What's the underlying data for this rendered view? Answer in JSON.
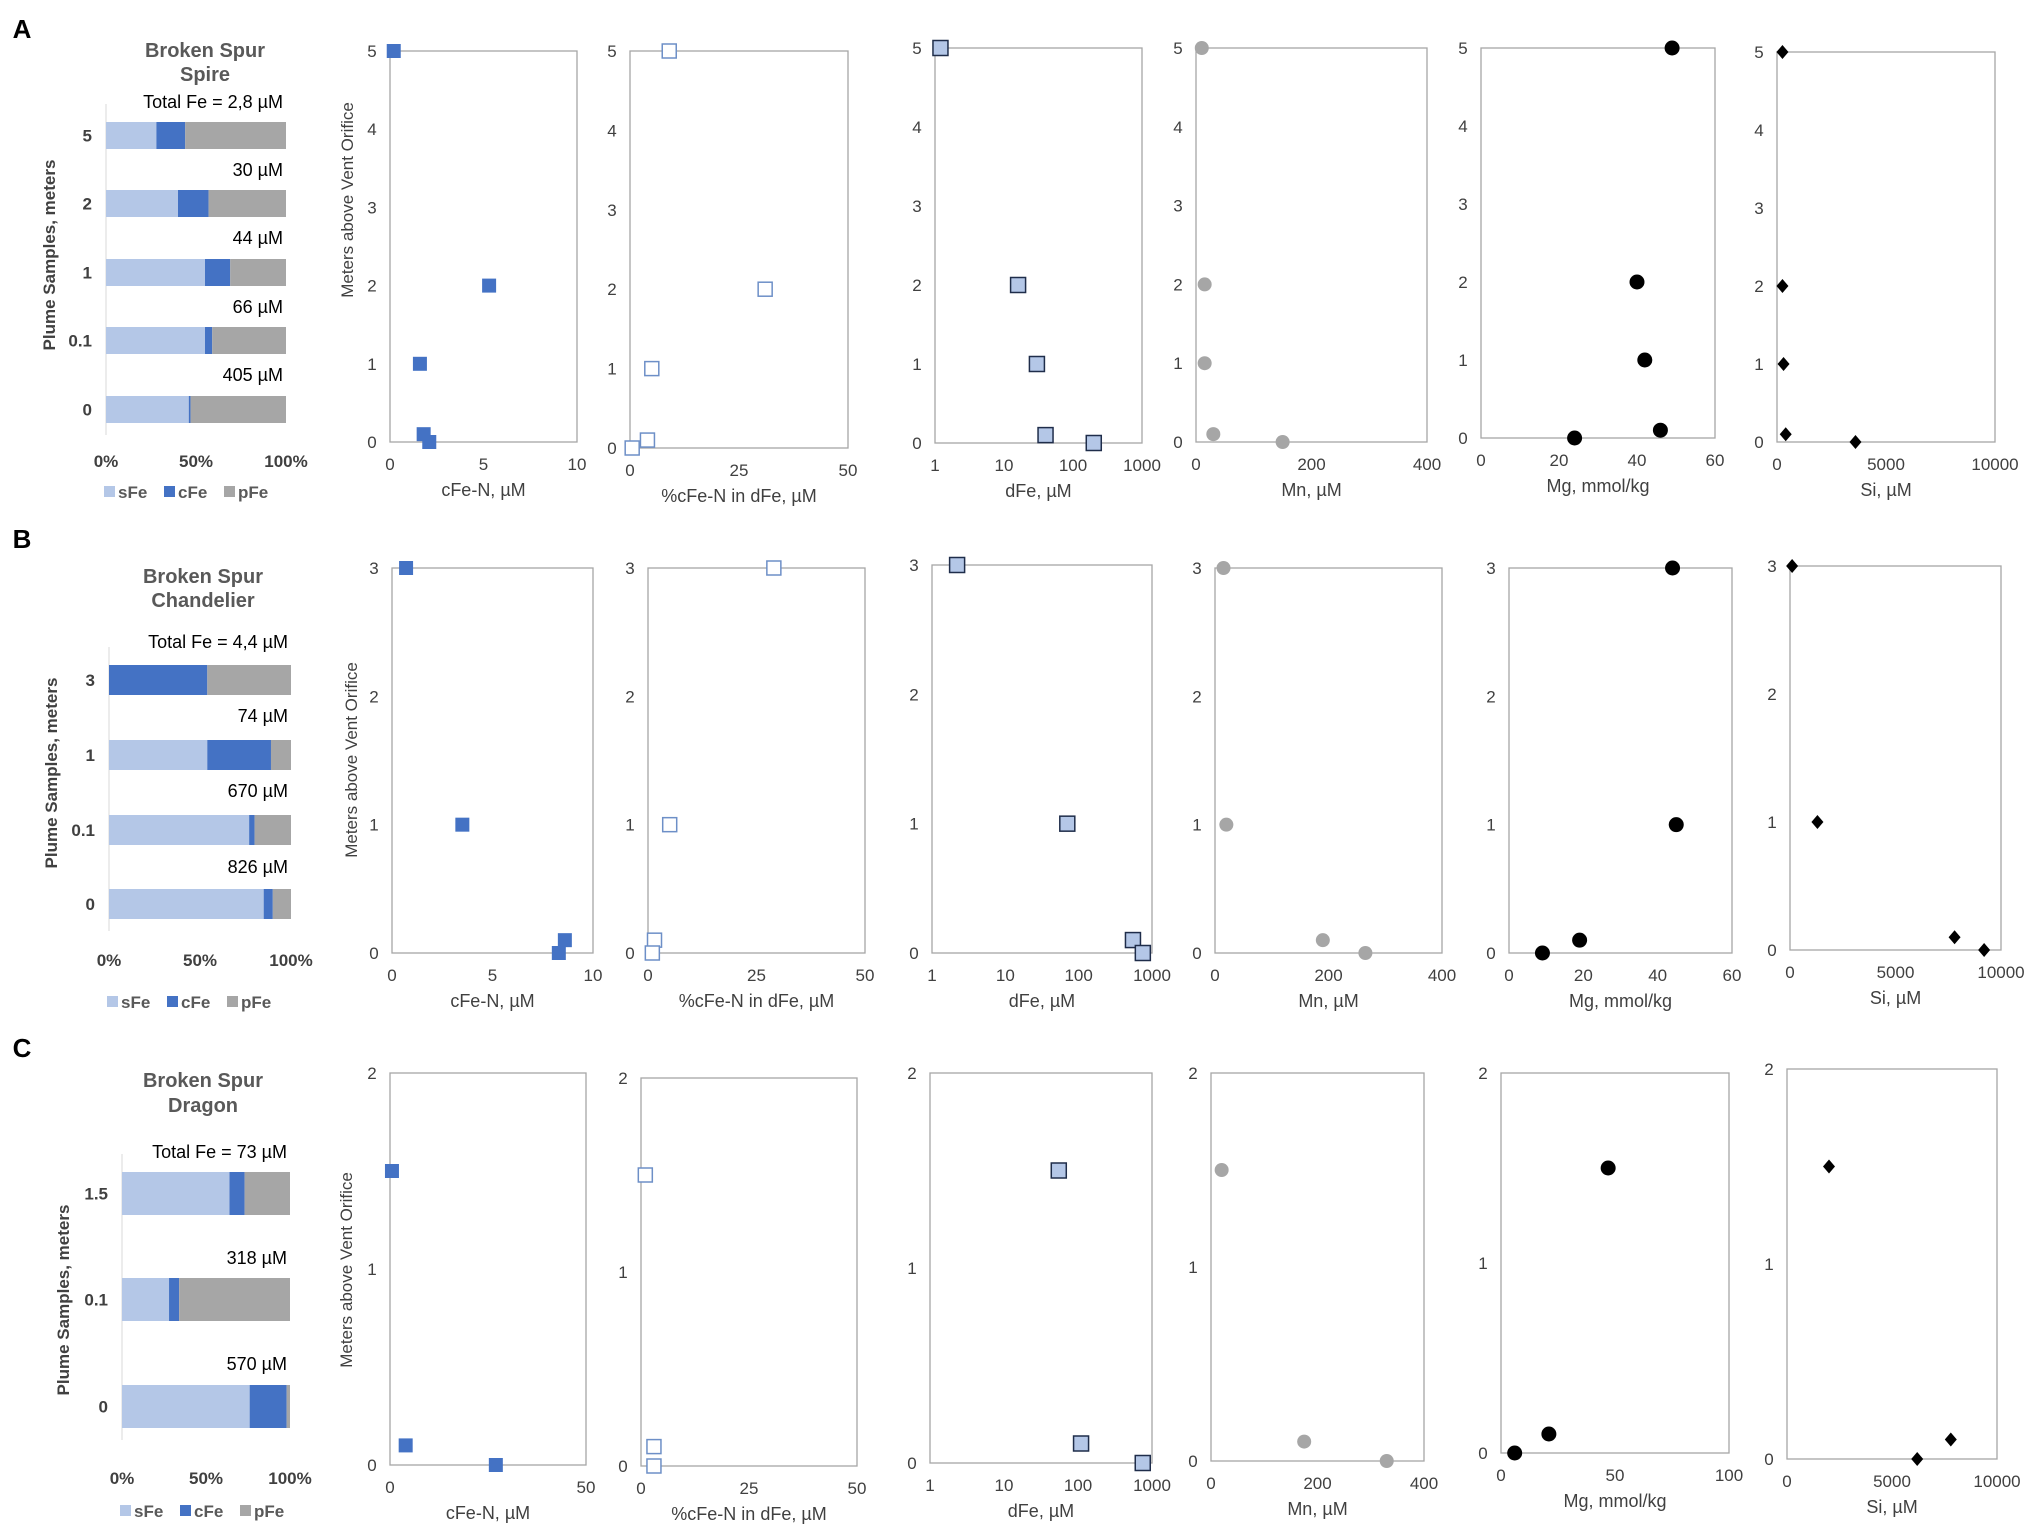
{
  "colors": {
    "sFe": "#b4c7e7",
    "cFe": "#4472c4",
    "pFe": "#a6a6a6",
    "mn": "#a6a6a6",
    "black": "#000000",
    "frame": "#a6a6a6"
  },
  "shared": {
    "legend": [
      "sFe",
      "cFe",
      "pFe"
    ],
    "bar_ylabel": "Plume Samples, meters",
    "bar_xticks": [
      "0%",
      "50%",
      "100%"
    ],
    "scatter_ylabel": "Meters above Vent Orifice"
  },
  "chart_data": [
    {
      "type": "bar",
      "stacked": true,
      "orientation": "horizontal",
      "panel": "A",
      "title": "Broken Spur\nSpire",
      "categories": [
        "5",
        "2",
        "1",
        "0.1",
        "0"
      ],
      "total_labels": [
        "Total Fe = 2,8 µM",
        "30 µM",
        "44 µM",
        "66 µM",
        "405 µM"
      ],
      "series": [
        {
          "name": "sFe",
          "values": [
            28,
            40,
            55,
            55,
            46
          ]
        },
        {
          "name": "cFe",
          "values": [
            16,
            17,
            14,
            4,
            1
          ]
        },
        {
          "name": "pFe",
          "values": [
            56,
            43,
            31,
            41,
            53
          ]
        }
      ],
      "xlim": [
        0,
        100
      ]
    },
    {
      "type": "scatter",
      "panel": "A",
      "marker": "square-filled",
      "xlabel": "cFe-N, µM",
      "xlim": [
        0,
        10
      ],
      "xticks": [
        0,
        5,
        10
      ],
      "ylim": [
        0,
        5
      ],
      "yticks": [
        0,
        1,
        2,
        3,
        4,
        5
      ],
      "points": [
        [
          0.2,
          5
        ],
        [
          1.6,
          1
        ],
        [
          1.8,
          0.1
        ],
        [
          2.1,
          0
        ],
        [
          5.3,
          2
        ]
      ]
    },
    {
      "type": "scatter",
      "panel": "A",
      "marker": "square-open",
      "xlabel": "%cFe-N in dFe, µM",
      "xlim": [
        0,
        50
      ],
      "xticks": [
        0,
        25,
        50
      ],
      "ylim": [
        0,
        5
      ],
      "yticks": [
        0,
        1,
        2,
        3,
        4,
        5
      ],
      "points": [
        [
          9,
          5
        ],
        [
          31,
          2
        ],
        [
          5,
          1
        ],
        [
          4,
          0.1
        ],
        [
          0.5,
          0
        ]
      ]
    },
    {
      "type": "scatter",
      "panel": "A",
      "marker": "square-light",
      "xscale": "log",
      "xlabel": "dFe, µM",
      "xlim": [
        1,
        1000
      ],
      "xticks": [
        1,
        10,
        100,
        1000
      ],
      "ylim": [
        0,
        5
      ],
      "yticks": [
        0,
        1,
        2,
        3,
        4,
        5
      ],
      "points": [
        [
          1.2,
          5
        ],
        [
          16,
          2
        ],
        [
          30,
          1
        ],
        [
          40,
          0.1
        ],
        [
          200,
          0
        ]
      ]
    },
    {
      "type": "scatter",
      "panel": "A",
      "marker": "circle-gray",
      "xlabel": "Mn, µM",
      "xlim": [
        0,
        400
      ],
      "xticks": [
        0,
        200,
        400
      ],
      "ylim": [
        0,
        5
      ],
      "yticks": [
        0,
        1,
        2,
        3,
        4,
        5
      ],
      "points": [
        [
          10,
          5
        ],
        [
          15,
          2
        ],
        [
          15,
          1
        ],
        [
          30,
          0.1
        ],
        [
          150,
          0
        ]
      ]
    },
    {
      "type": "scatter",
      "panel": "A",
      "marker": "circle-black",
      "xlabel": "Mg, mmol/kg",
      "xlim": [
        0,
        60
      ],
      "xticks": [
        0,
        20,
        40,
        60
      ],
      "ylim": [
        0,
        5
      ],
      "yticks": [
        0,
        1,
        2,
        3,
        4,
        5
      ],
      "points": [
        [
          49,
          5
        ],
        [
          40,
          2
        ],
        [
          42,
          1
        ],
        [
          46,
          0.1
        ],
        [
          24,
          0
        ]
      ]
    },
    {
      "type": "scatter",
      "panel": "A",
      "marker": "diamond-black",
      "xlabel": "Si, µM",
      "xlim": [
        0,
        10000
      ],
      "xticks": [
        0,
        5000,
        10000
      ],
      "ylim": [
        0,
        5
      ],
      "yticks": [
        0,
        1,
        2,
        3,
        4,
        5
      ],
      "points": [
        [
          250,
          5
        ],
        [
          250,
          2
        ],
        [
          300,
          1
        ],
        [
          400,
          0.1
        ],
        [
          3600,
          0
        ]
      ]
    },
    {
      "type": "bar",
      "stacked": true,
      "orientation": "horizontal",
      "panel": "B",
      "title": "Broken Spur\nChandelier",
      "categories": [
        "3",
        "1",
        "0.1",
        "0"
      ],
      "total_labels": [
        "Total Fe = 4,4 µM",
        "74 µM",
        "670 µM",
        "826 µM"
      ],
      "series": [
        {
          "name": "sFe",
          "values": [
            0,
            54,
            77,
            85
          ]
        },
        {
          "name": "cFe",
          "values": [
            54,
            35,
            3,
            5
          ]
        },
        {
          "name": "pFe",
          "values": [
            46,
            11,
            20,
            10
          ]
        }
      ],
      "xlim": [
        0,
        100
      ]
    },
    {
      "type": "scatter",
      "panel": "B",
      "marker": "square-filled",
      "xlabel": "cFe-N, µM",
      "xlim": [
        0,
        10
      ],
      "xticks": [
        0,
        5,
        10
      ],
      "ylim": [
        0,
        3
      ],
      "yticks": [
        0,
        1,
        2,
        3
      ],
      "points": [
        [
          0.7,
          3
        ],
        [
          3.5,
          1
        ],
        [
          8.6,
          0.1
        ],
        [
          8.3,
          0
        ]
      ]
    },
    {
      "type": "scatter",
      "panel": "B",
      "marker": "square-open",
      "xlabel": "%cFe-N in dFe, µM",
      "xlim": [
        0,
        50
      ],
      "xticks": [
        0,
        25,
        50
      ],
      "ylim": [
        0,
        3
      ],
      "yticks": [
        0,
        1,
        2,
        3
      ],
      "points": [
        [
          29,
          3
        ],
        [
          5,
          1
        ],
        [
          1.5,
          0.1
        ],
        [
          1,
          0
        ]
      ]
    },
    {
      "type": "scatter",
      "panel": "B",
      "marker": "square-light",
      "xscale": "log",
      "xlabel": "dFe, µM",
      "xlim": [
        1,
        1000
      ],
      "xticks": [
        1,
        10,
        100,
        1000
      ],
      "ylim": [
        0,
        3
      ],
      "yticks": [
        0,
        1,
        2,
        3
      ],
      "points": [
        [
          2.2,
          3
        ],
        [
          70,
          1
        ],
        [
          550,
          0.1
        ],
        [
          750,
          0
        ]
      ]
    },
    {
      "type": "scatter",
      "panel": "B",
      "marker": "circle-gray",
      "xlabel": "Mn, µM",
      "xlim": [
        0,
        400
      ],
      "xticks": [
        0,
        200,
        400
      ],
      "ylim": [
        0,
        3
      ],
      "yticks": [
        0,
        1,
        2,
        3
      ],
      "points": [
        [
          15,
          3
        ],
        [
          20,
          1
        ],
        [
          190,
          0.1
        ],
        [
          265,
          0
        ]
      ]
    },
    {
      "type": "scatter",
      "panel": "B",
      "marker": "circle-black",
      "xlabel": "Mg, mmol/kg",
      "xlim": [
        0,
        60
      ],
      "xticks": [
        0,
        20,
        40,
        60
      ],
      "ylim": [
        0,
        3
      ],
      "yticks": [
        0,
        1,
        2,
        3
      ],
      "points": [
        [
          44,
          3
        ],
        [
          45,
          1
        ],
        [
          19,
          0.1
        ],
        [
          9,
          0
        ]
      ]
    },
    {
      "type": "scatter",
      "panel": "B",
      "marker": "diamond-black",
      "xlabel": "Si, µM",
      "xlim": [
        0,
        10000
      ],
      "xticks": [
        0,
        5000,
        10000
      ],
      "ylim": [
        0,
        3
      ],
      "yticks": [
        0,
        1,
        2,
        3
      ],
      "points": [
        [
          100,
          3
        ],
        [
          1300,
          1
        ],
        [
          7800,
          0.1
        ],
        [
          9200,
          0
        ]
      ]
    },
    {
      "type": "bar",
      "stacked": true,
      "orientation": "horizontal",
      "panel": "C",
      "title": "Broken Spur\nDragon",
      "categories": [
        "1.5",
        "0.1",
        "0"
      ],
      "total_labels": [
        "Total Fe = 73 µM",
        "318 µM",
        "570 µM"
      ],
      "series": [
        {
          "name": "sFe",
          "values": [
            64,
            28,
            76
          ]
        },
        {
          "name": "cFe",
          "values": [
            9,
            6,
            22
          ]
        },
        {
          "name": "pFe",
          "values": [
            27,
            66,
            2
          ]
        }
      ],
      "xlim": [
        0,
        100
      ]
    },
    {
      "type": "scatter",
      "panel": "C",
      "marker": "square-filled",
      "xlabel": "cFe-N, µM",
      "xlim": [
        0,
        50
      ],
      "xticks": [
        0,
        50
      ],
      "ylim": [
        0,
        2
      ],
      "yticks": [
        0,
        1,
        2
      ],
      "points": [
        [
          0.5,
          1.5
        ],
        [
          4,
          0.1
        ],
        [
          27,
          0
        ]
      ]
    },
    {
      "type": "scatter",
      "panel": "C",
      "marker": "square-open",
      "xlabel": "%cFe-N in dFe, µM",
      "xlim": [
        0,
        50
      ],
      "xticks": [
        0,
        25,
        50
      ],
      "ylim": [
        0,
        2
      ],
      "yticks": [
        0,
        1,
        2
      ],
      "points": [
        [
          1,
          1.5
        ],
        [
          3,
          0.1
        ],
        [
          3,
          0
        ]
      ]
    },
    {
      "type": "scatter",
      "panel": "C",
      "marker": "square-light",
      "xscale": "log",
      "xlabel": "dFe, µM",
      "xlim": [
        1,
        1000
      ],
      "xticks": [
        1,
        10,
        100,
        1000
      ],
      "ylim": [
        0,
        2
      ],
      "yticks": [
        0,
        1,
        2
      ],
      "points": [
        [
          55,
          1.5
        ],
        [
          110,
          0.1
        ],
        [
          750,
          0
        ]
      ]
    },
    {
      "type": "scatter",
      "panel": "C",
      "marker": "circle-gray",
      "xlabel": "Mn, µM",
      "xlim": [
        0,
        400
      ],
      "xticks": [
        0,
        200,
        400
      ],
      "ylim": [
        0,
        2
      ],
      "yticks": [
        0,
        1,
        2
      ],
      "points": [
        [
          20,
          1.5
        ],
        [
          175,
          0.1
        ],
        [
          330,
          0
        ]
      ]
    },
    {
      "type": "scatter",
      "panel": "C",
      "marker": "circle-black",
      "xlabel": "Mg, mmol/kg",
      "xlim": [
        0,
        100
      ],
      "xticks": [
        0,
        50,
        100
      ],
      "ylim": [
        0,
        2
      ],
      "yticks": [
        0,
        1,
        2
      ],
      "points": [
        [
          47,
          1.5
        ],
        [
          21,
          0.1
        ],
        [
          6,
          0
        ]
      ]
    },
    {
      "type": "scatter",
      "panel": "C",
      "marker": "diamond-black",
      "xlabel": "Si, µM",
      "xlim": [
        0,
        10000
      ],
      "xticks": [
        0,
        5000,
        10000
      ],
      "ylim": [
        0,
        2
      ],
      "yticks": [
        0,
        1,
        2
      ],
      "points": [
        [
          2000,
          1.5
        ],
        [
          6200,
          0
        ],
        [
          7800,
          0.1
        ]
      ]
    }
  ]
}
